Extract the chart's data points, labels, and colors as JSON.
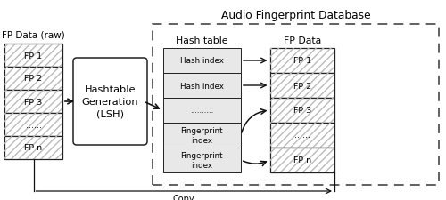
{
  "title": "Audio Fingerprint Database",
  "fp_data_raw_label": "FP Data (raw)",
  "fp_data_db_label": "FP Data",
  "hash_table_label": "Hash table",
  "copy_label": "Copy",
  "process_box_lines": [
    "Hashtable",
    "Generation",
    "(LSH)"
  ],
  "fp_raw_items": [
    "FP 1",
    "FP 2",
    "FP 3",
    "......",
    "FP n"
  ],
  "hash_table_items": [
    "Hash index",
    "Hash index",
    "..........",
    "Fingerprint\nindex",
    "Fingerprint\nindex"
  ],
  "fp_db_items": [
    "FP 1",
    "FP 2",
    "FP 3",
    "......",
    "FP n"
  ],
  "bg_color": "#ffffff",
  "border_color": "#222222",
  "text_color": "#000000",
  "arrow_color": "#111111",
  "xlim": [
    0,
    10
  ],
  "ylim": [
    0,
    4.52
  ],
  "figw": 5.0,
  "figh": 2.26,
  "dpi": 100
}
